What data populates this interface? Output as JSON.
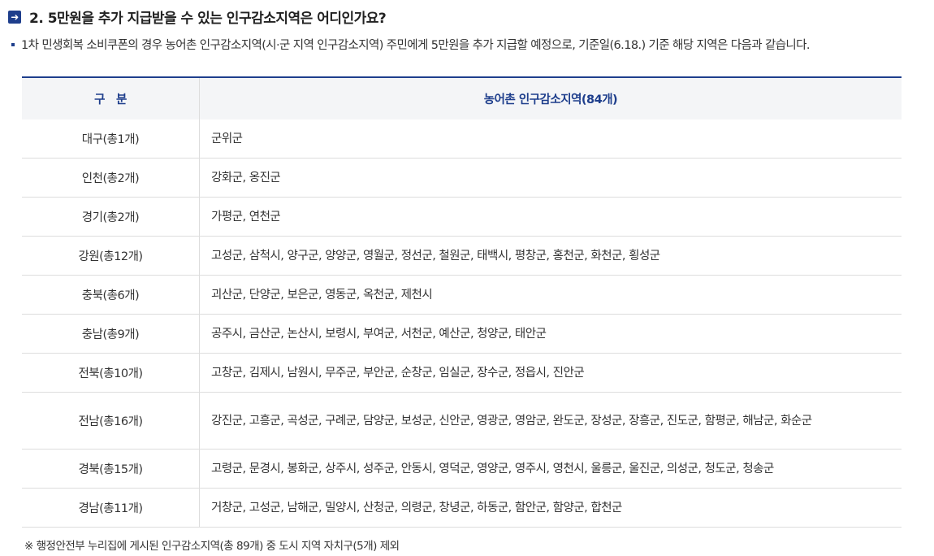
{
  "title": "2. 5만원을 추가 지급받을 수 있는 인구감소지역은 어디인가요?",
  "description": "1차 민생회복 소비쿠폰의 경우 농어촌 인구감소지역(시·군 지역 인구감소지역) 주민에게 5만원을 추가 지급할 예정으로, 기준일(6.18.) 기준 해당 지역은 다음과 같습니다.",
  "table": {
    "headers": [
      "구　분",
      "농어촌 인구감소지역(84개)"
    ],
    "rows": [
      {
        "region": "대구(총1개)",
        "areas": "군위군"
      },
      {
        "region": "인천(총2개)",
        "areas": "강화군, 옹진군"
      },
      {
        "region": "경기(총2개)",
        "areas": "가평군, 연천군"
      },
      {
        "region": "강원(총12개)",
        "areas": "고성군, 삼척시, 양구군, 양양군, 영월군, 정선군, 철원군, 태백시, 평창군, 홍천군, 화천군, 횡성군"
      },
      {
        "region": "충북(총6개)",
        "areas": "괴산군, 단양군, 보은군, 영동군, 옥천군, 제천시"
      },
      {
        "region": "충남(총9개)",
        "areas": "공주시, 금산군, 논산시, 보령시, 부여군, 서천군, 예산군, 청양군, 태안군"
      },
      {
        "region": "전북(총10개)",
        "areas": "고창군, 김제시, 남원시, 무주군, 부안군, 순창군, 임실군, 장수군, 정읍시, 진안군"
      },
      {
        "region": "전남(총16개)",
        "areas": "강진군, 고흥군, 곡성군, 구례군, 담양군, 보성군, 신안군, 영광군, 영암군, 완도군, 장성군, 장흥군, 진도군, 함평군, 해남군, 화순군"
      },
      {
        "region": "경북(총15개)",
        "areas": "고령군, 문경시, 봉화군, 상주시, 성주군, 안동시, 영덕군, 영양군, 영주시, 영천시, 울릉군, 울진군, 의성군, 청도군, 청송군"
      },
      {
        "region": "경남(총11개)",
        "areas": "거창군, 고성군, 남해군, 밀양시, 산청군, 의령군, 창녕군, 하동군, 함안군, 함양군, 합천군"
      }
    ]
  },
  "note": "※ 행정안전부 누리집에 게시된 인구감소지역(총 89개) 중 도시 지역 자치구(5개) 제외",
  "colors": {
    "accent": "#1e3e8c"
  }
}
